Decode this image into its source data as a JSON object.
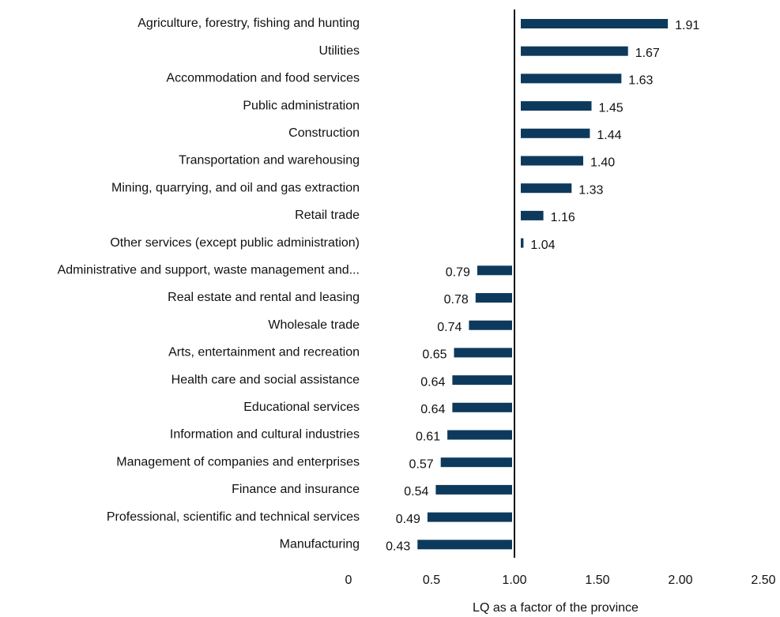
{
  "chart_data": {
    "type": "bar",
    "orientation": "horizontal",
    "base": 1,
    "x_label": "LQ as a factor of the province",
    "categories": [
      "Agriculture, forestry, fishing and hunting",
      "Utilities",
      "Accommodation and food services",
      "Public administration",
      "Construction",
      "Transportation and warehousing",
      "Mining, quarrying, and oil and gas extraction",
      "Retail trade",
      "Other services (except public administration)",
      "Administrative and support, waste management and...",
      "Real estate and rental and leasing",
      "Wholesale trade",
      "Arts, entertainment and recreation",
      "Health care and social assistance",
      "Educational services",
      "Information and cultural industries",
      "Management of companies and enterprises",
      "Finance and insurance",
      "Professional, scientific and technical services",
      "Manufacturing"
    ],
    "values": [
      1.91,
      1.67,
      1.63,
      1.45,
      1.44,
      1.4,
      1.33,
      1.16,
      1.04,
      0.79,
      0.78,
      0.74,
      0.65,
      0.64,
      0.64,
      0.61,
      0.57,
      0.54,
      0.49,
      0.43
    ],
    "value_labels": [
      "1.91",
      "1.67",
      "1.63",
      "1.45",
      "1.44",
      "1.40",
      "1.33",
      "1.16",
      "1.04",
      "0.79",
      "0.78",
      "0.74",
      "0.65",
      "0.64",
      "0.64",
      "0.61",
      "0.57",
      "0.54",
      "0.49",
      "0.43"
    ],
    "color": "#0d3a5c",
    "xlim": [
      0,
      2.5
    ],
    "xticks": [
      0,
      0.5,
      {
        "value": 1,
        "label": "1.00"
      },
      {
        "value": 1.5,
        "label": "1.50"
      },
      {
        "value": 2,
        "label": "2.00"
      },
      {
        "value": 2.5,
        "label": "2.50"
      }
    ]
  }
}
